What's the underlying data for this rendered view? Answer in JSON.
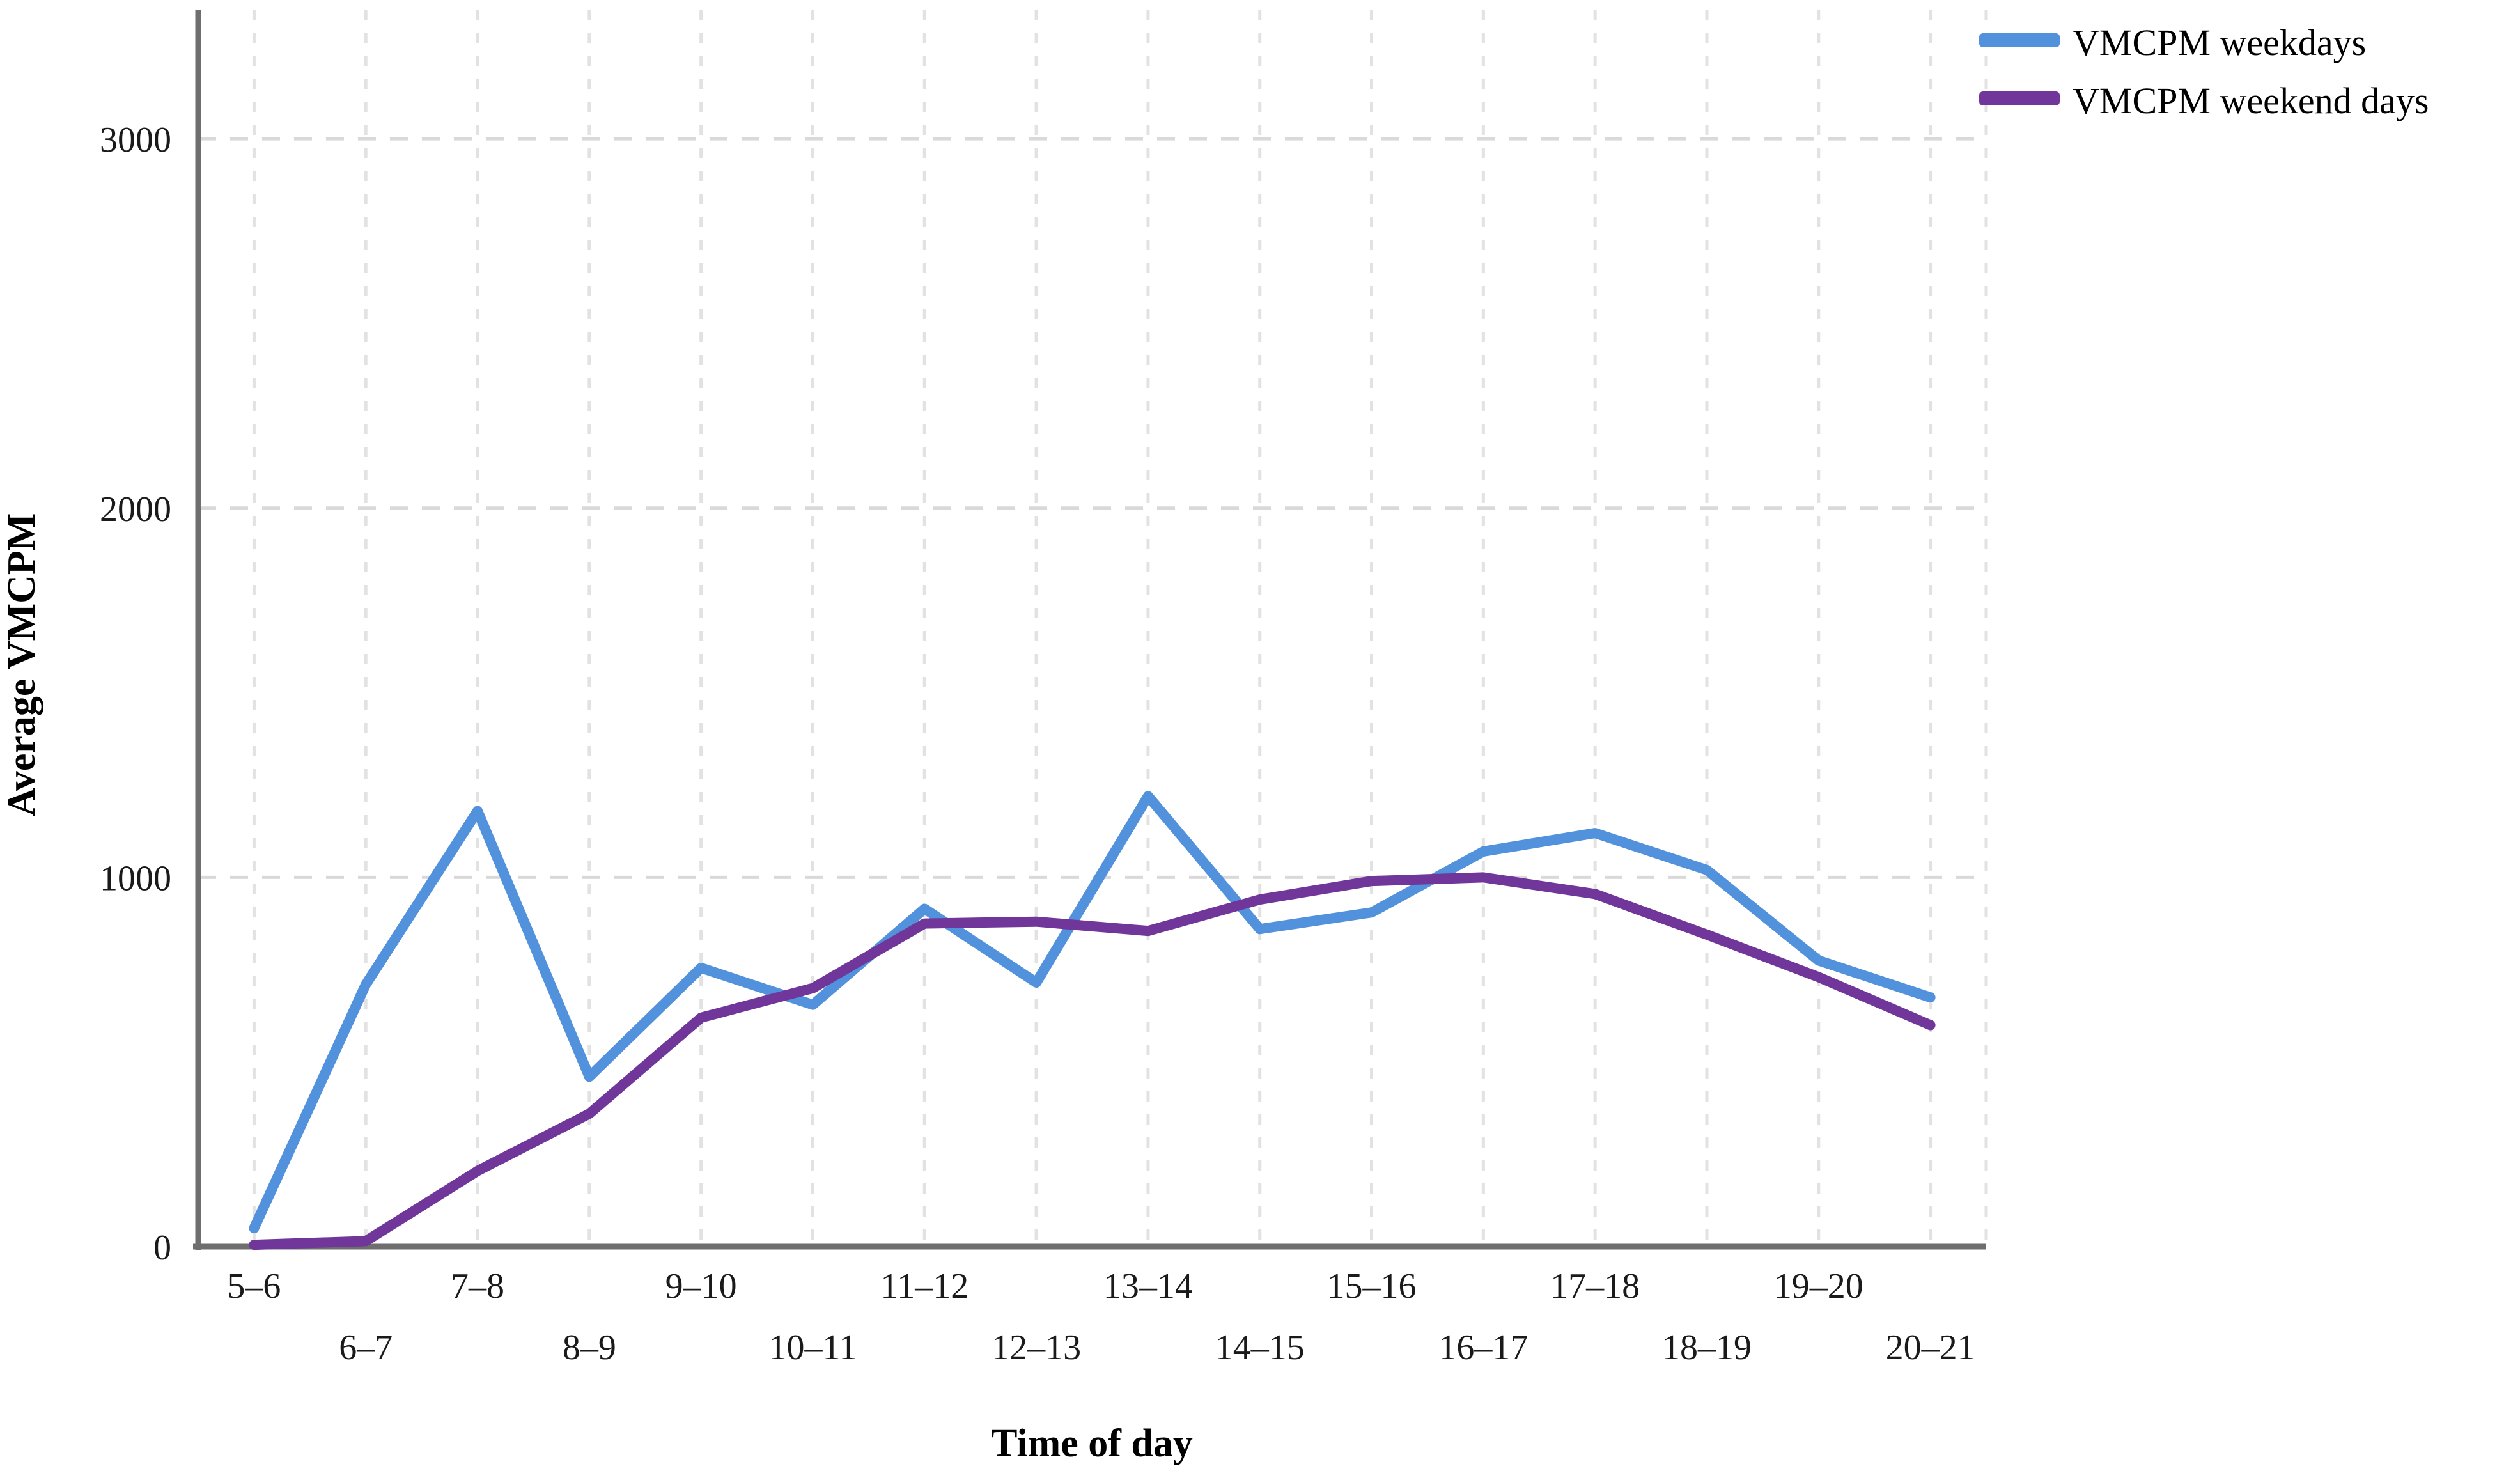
{
  "chart_data": {
    "type": "line",
    "title": "",
    "xlabel": "Time of day",
    "ylabel": "Average VMCPM",
    "categories": [
      "5–6",
      "6–7",
      "7–8",
      "8–9",
      "9–10",
      "10–11",
      "11–12",
      "12–13",
      "13–14",
      "14–15",
      "15–16",
      "16–17",
      "17–18",
      "18–19",
      "19–20",
      "20–21"
    ],
    "series": [
      {
        "name": "VMCPM weekdays",
        "color": "#5291DB",
        "values": [
          50,
          710,
          1180,
          460,
          755,
          655,
          915,
          715,
          1220,
          860,
          905,
          1070,
          1120,
          1020,
          775,
          675
        ]
      },
      {
        "name": "VMCPM weekend days",
        "color": "#703699",
        "values": [
          5,
          15,
          205,
          360,
          620,
          700,
          875,
          880,
          855,
          940,
          990,
          1000,
          955,
          845,
          730,
          600
        ]
      }
    ],
    "ylim": [
      0,
      3350
    ],
    "yticks": [
      0,
      1000,
      2000,
      3000
    ],
    "grid": "dashed",
    "legend_position": "top-right",
    "x_tick_layout": "staggered-two-rows"
  },
  "colors": {
    "axis_line": "#6E6E6E",
    "h_gridline": "#D9D9D9",
    "v_gridline": "#E2E2E2",
    "tick_text": "#1A1A1A",
    "background": "#FFFFFF"
  }
}
